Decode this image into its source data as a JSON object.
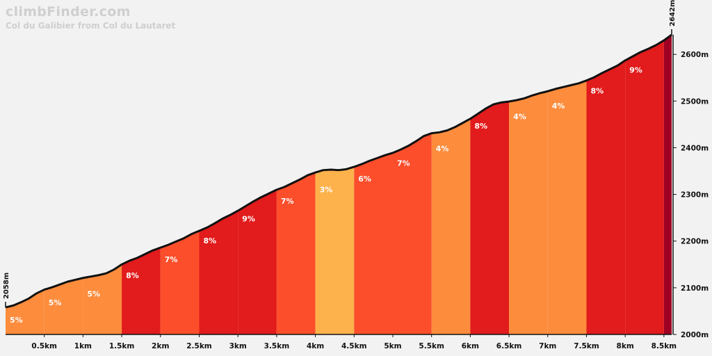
{
  "brand": "climbFinder.com",
  "title": "Col du Galibier from Col du Lautaret",
  "chart_data": {
    "type": "area",
    "x_unit": "km",
    "y_unit": "m",
    "xlim": [
      0,
      8.6
    ],
    "ylim": [
      2000,
      2642
    ],
    "start_elevation": "2058m",
    "end_elevation": "2642m",
    "x_ticks": [
      "0.5km",
      "1km",
      "1.5km",
      "2km",
      "2.5km",
      "3km",
      "3.5km",
      "4km",
      "4.5km",
      "5km",
      "5.5km",
      "6km",
      "6.5km",
      "7km",
      "7.5km",
      "8km",
      "8.5km"
    ],
    "y_ticks": [
      "2000m",
      "2100m",
      "2200m",
      "2300m",
      "2400m",
      "2500m",
      "2600m"
    ],
    "segments": [
      {
        "start": 0.0,
        "end": 0.5,
        "gradient": "5%",
        "color": "#fd8c3c"
      },
      {
        "start": 0.5,
        "end": 1.0,
        "gradient": "5%",
        "color": "#fd8c3c"
      },
      {
        "start": 1.0,
        "end": 1.5,
        "gradient": "5%",
        "color": "#fd8c3c"
      },
      {
        "start": 1.5,
        "end": 2.0,
        "gradient": "8%",
        "color": "#e21b1c"
      },
      {
        "start": 2.0,
        "end": 2.5,
        "gradient": "7%",
        "color": "#fc4e2b"
      },
      {
        "start": 2.5,
        "end": 3.0,
        "gradient": "8%",
        "color": "#e21b1c"
      },
      {
        "start": 3.0,
        "end": 3.5,
        "gradient": "9%",
        "color": "#e21b1c"
      },
      {
        "start": 3.5,
        "end": 4.0,
        "gradient": "7%",
        "color": "#fc4e2b"
      },
      {
        "start": 4.0,
        "end": 4.5,
        "gradient": "3%",
        "color": "#feb24c"
      },
      {
        "start": 4.5,
        "end": 5.0,
        "gradient": "6%",
        "color": "#fc4e2b"
      },
      {
        "start": 5.0,
        "end": 5.5,
        "gradient": "7%",
        "color": "#fc4e2b"
      },
      {
        "start": 5.5,
        "end": 6.0,
        "gradient": "4%",
        "color": "#fd8c3c"
      },
      {
        "start": 6.0,
        "end": 6.5,
        "gradient": "8%",
        "color": "#e21b1c"
      },
      {
        "start": 6.5,
        "end": 7.0,
        "gradient": "4%",
        "color": "#fd8c3c"
      },
      {
        "start": 7.0,
        "end": 7.5,
        "gradient": "4%",
        "color": "#fd8c3c"
      },
      {
        "start": 7.5,
        "end": 8.0,
        "gradient": "8%",
        "color": "#e21b1c"
      },
      {
        "start": 8.0,
        "end": 8.5,
        "gradient": "9%",
        "color": "#e21b1c"
      },
      {
        "start": 8.5,
        "end": 8.6,
        "gradient": "",
        "color": "#9e0023"
      }
    ],
    "profile": [
      [
        0.0,
        2058
      ],
      [
        0.1,
        2062
      ],
      [
        0.2,
        2069
      ],
      [
        0.3,
        2077
      ],
      [
        0.4,
        2088
      ],
      [
        0.5,
        2096
      ],
      [
        0.6,
        2101
      ],
      [
        0.7,
        2107
      ],
      [
        0.8,
        2113
      ],
      [
        0.9,
        2117
      ],
      [
        1.0,
        2121
      ],
      [
        1.1,
        2124
      ],
      [
        1.2,
        2127
      ],
      [
        1.3,
        2131
      ],
      [
        1.4,
        2139
      ],
      [
        1.5,
        2150
      ],
      [
        1.6,
        2158
      ],
      [
        1.7,
        2164
      ],
      [
        1.8,
        2172
      ],
      [
        1.9,
        2180
      ],
      [
        2.0,
        2186
      ],
      [
        2.1,
        2192
      ],
      [
        2.2,
        2199
      ],
      [
        2.3,
        2206
      ],
      [
        2.4,
        2215
      ],
      [
        2.5,
        2222
      ],
      [
        2.6,
        2229
      ],
      [
        2.7,
        2238
      ],
      [
        2.8,
        2248
      ],
      [
        2.9,
        2256
      ],
      [
        3.0,
        2265
      ],
      [
        3.1,
        2275
      ],
      [
        3.2,
        2285
      ],
      [
        3.3,
        2294
      ],
      [
        3.4,
        2302
      ],
      [
        3.5,
        2310
      ],
      [
        3.6,
        2316
      ],
      [
        3.7,
        2324
      ],
      [
        3.8,
        2332
      ],
      [
        3.9,
        2341
      ],
      [
        4.0,
        2347
      ],
      [
        4.1,
        2352
      ],
      [
        4.2,
        2353
      ],
      [
        4.3,
        2352
      ],
      [
        4.4,
        2354
      ],
      [
        4.5,
        2359
      ],
      [
        4.6,
        2365
      ],
      [
        4.7,
        2372
      ],
      [
        4.8,
        2378
      ],
      [
        4.9,
        2384
      ],
      [
        5.0,
        2389
      ],
      [
        5.1,
        2396
      ],
      [
        5.2,
        2404
      ],
      [
        5.3,
        2414
      ],
      [
        5.4,
        2425
      ],
      [
        5.5,
        2431
      ],
      [
        5.6,
        2433
      ],
      [
        5.7,
        2437
      ],
      [
        5.8,
        2444
      ],
      [
        5.9,
        2453
      ],
      [
        6.0,
        2462
      ],
      [
        6.1,
        2473
      ],
      [
        6.2,
        2484
      ],
      [
        6.3,
        2493
      ],
      [
        6.4,
        2497
      ],
      [
        6.5,
        2499
      ],
      [
        6.6,
        2502
      ],
      [
        6.7,
        2506
      ],
      [
        6.8,
        2512
      ],
      [
        6.9,
        2517
      ],
      [
        7.0,
        2521
      ],
      [
        7.1,
        2526
      ],
      [
        7.2,
        2530
      ],
      [
        7.3,
        2534
      ],
      [
        7.4,
        2538
      ],
      [
        7.5,
        2544
      ],
      [
        7.6,
        2551
      ],
      [
        7.7,
        2560
      ],
      [
        7.8,
        2568
      ],
      [
        7.9,
        2576
      ],
      [
        8.0,
        2587
      ],
      [
        8.1,
        2596
      ],
      [
        8.2,
        2605
      ],
      [
        8.3,
        2612
      ],
      [
        8.4,
        2620
      ],
      [
        8.5,
        2630
      ],
      [
        8.6,
        2642
      ]
    ]
  }
}
